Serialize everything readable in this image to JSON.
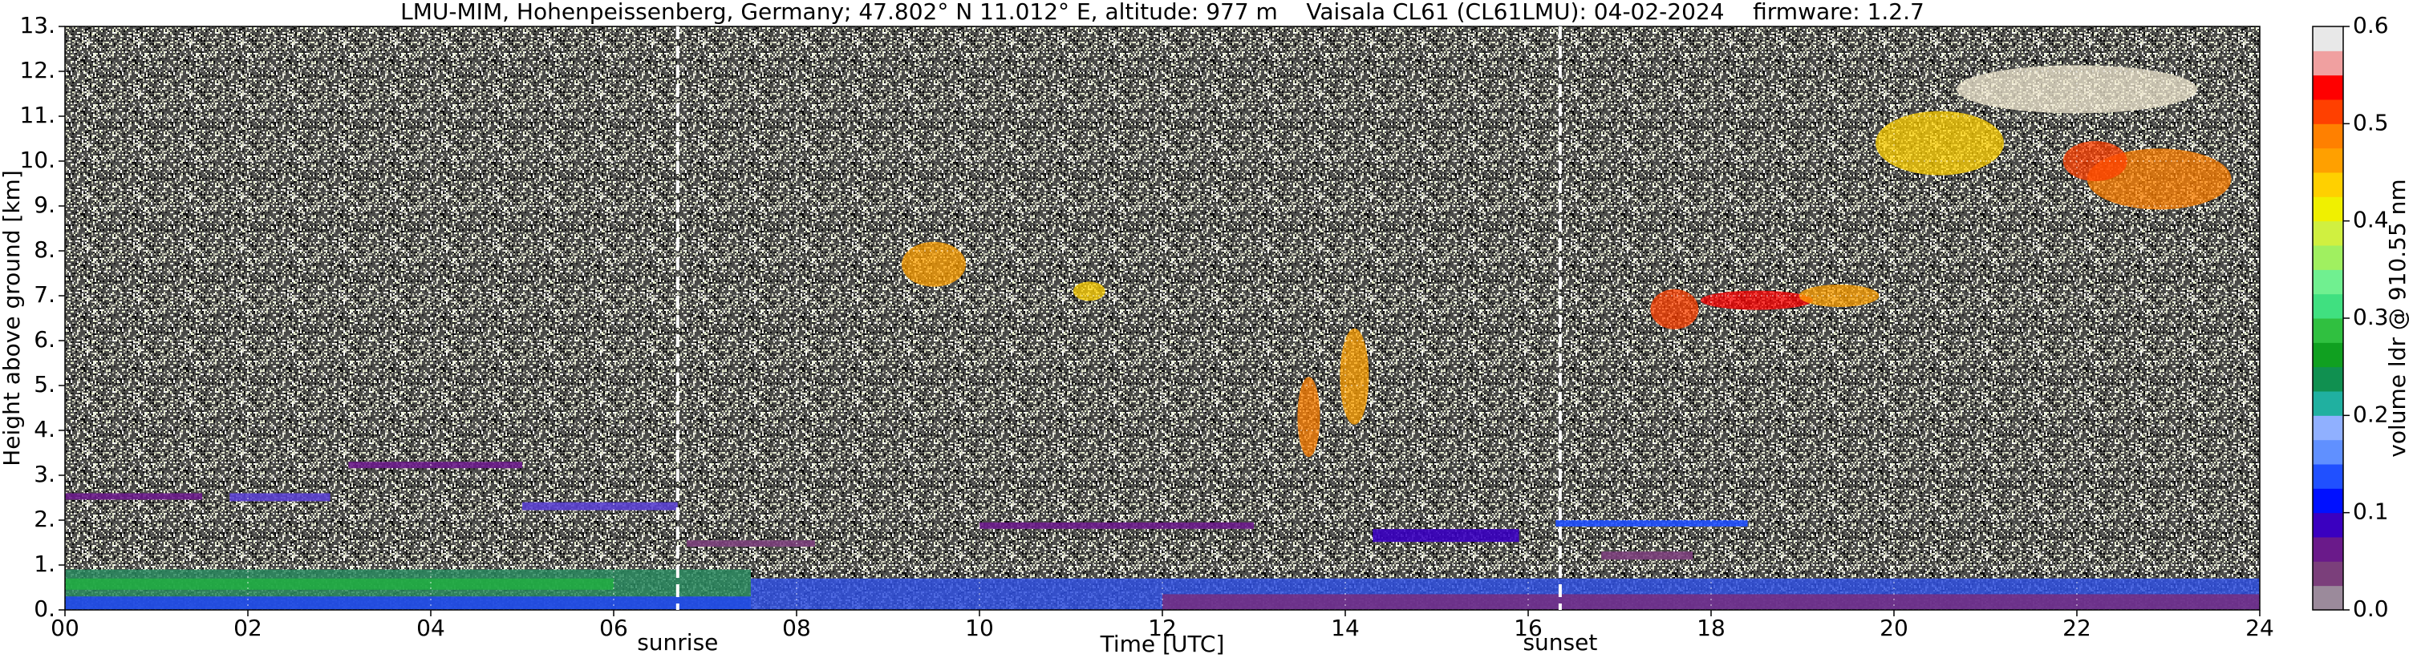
{
  "chart_data": {
    "type": "heatmap",
    "title": "LMU-MIM, Hohenpeissenberg, Germany; 47.802° N 11.012° E, altitude: 977 m    Vaisala CL61 (CL61LMU): 04-02-2024    firmware: 1.2.7",
    "xlabel": "Time [UTC]",
    "ylabel": "Height above ground [km]",
    "xlim": [
      0,
      24
    ],
    "xticks": [
      {
        "value": 0,
        "label": "00"
      },
      {
        "value": 2,
        "label": "02"
      },
      {
        "value": 4,
        "label": "04"
      },
      {
        "value": 6,
        "label": "06"
      },
      {
        "value": 8,
        "label": "08"
      },
      10,
      12,
      14,
      16,
      18,
      20,
      22,
      24
    ],
    "ylim": [
      0,
      13
    ],
    "yticks": [
      {
        "value": 0,
        "label": "0."
      },
      {
        "value": 1,
        "label": "1."
      },
      {
        "value": 2,
        "label": "2."
      },
      {
        "value": 3,
        "label": "3."
      },
      {
        "value": 4,
        "label": "4."
      },
      {
        "value": 5,
        "label": "5."
      },
      {
        "value": 6,
        "label": "6."
      },
      {
        "value": 7,
        "label": "7."
      },
      {
        "value": 8,
        "label": "8."
      },
      {
        "value": 9,
        "label": "9."
      },
      {
        "value": 10,
        "label": "10."
      },
      {
        "value": 11,
        "label": "11."
      },
      {
        "value": 12,
        "label": "12."
      },
      {
        "value": 13,
        "label": "13."
      }
    ],
    "grid": true,
    "annotations": [
      {
        "text": "sunrise",
        "x": 6.7
      },
      {
        "text": "sunset",
        "x": 16.35
      }
    ],
    "colorbar": {
      "label": "volume ldr @ 910.55 nm",
      "lim": [
        0,
        0.6
      ],
      "ticks": [
        {
          "value": 0,
          "label": "0.0"
        },
        0.1,
        0.2,
        0.3,
        0.4,
        0.5,
        0.6
      ],
      "colors": [
        "#9b8a9b",
        "#7b3f7b",
        "#6a1a8a",
        "#3a00c0",
        "#0010ff",
        "#2050ff",
        "#6090ff",
        "#90b0ff",
        "#20b0a0",
        "#109050",
        "#10a020",
        "#30c040",
        "#40e080",
        "#70f090",
        "#a0f060",
        "#d0f040",
        "#f0f000",
        "#ffd000",
        "#ffa000",
        "#ff8000",
        "#ff4000",
        "#ff0000",
        "#f0a0a0",
        "#e8e8e8"
      ]
    }
  }
}
